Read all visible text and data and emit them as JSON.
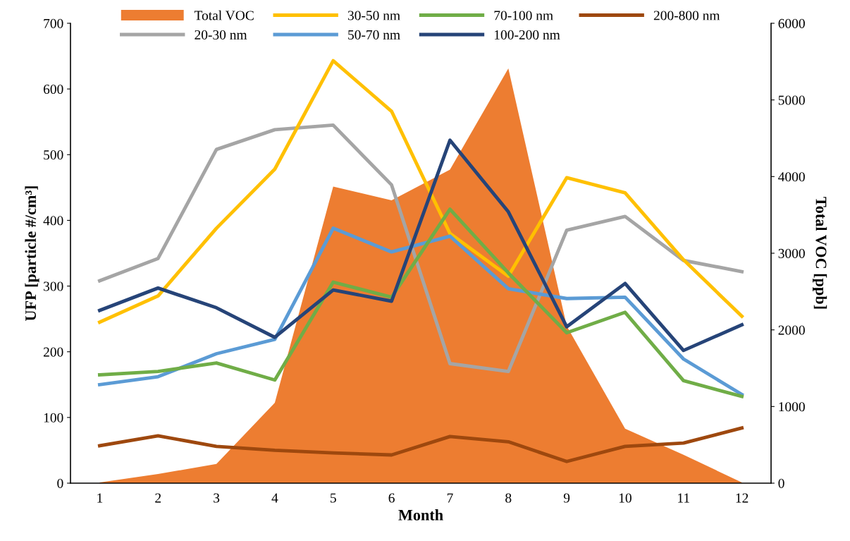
{
  "chart_data": {
    "type": "line",
    "xlabel": "Month",
    "ylabel": "UFP [particle #/cm³]",
    "y2label": "Total VOC [ppb]",
    "categories": [
      "1",
      "2",
      "3",
      "4",
      "5",
      "6",
      "7",
      "8",
      "9",
      "10",
      "11",
      "12"
    ],
    "ylim": [
      0,
      700
    ],
    "yticks": [
      0,
      100,
      200,
      300,
      400,
      500,
      600,
      700
    ],
    "y2lim": [
      0,
      6000
    ],
    "y2ticks": [
      0,
      1000,
      2000,
      3000,
      4000,
      5000,
      6000
    ],
    "grid": false,
    "legend": "top",
    "marker": "none",
    "line_style": "solid",
    "series": [
      {
        "name": "Total VOC",
        "type": "area",
        "axis": "y2",
        "color": "#ed7d31",
        "values": [
          10,
          120,
          250,
          1050,
          3870,
          3690,
          4090,
          5410,
          2050,
          710,
          370,
          10
        ]
      },
      {
        "name": "20-30 nm",
        "color": "#a5a5a5",
        "values": [
          308,
          342,
          508,
          538,
          545,
          454,
          182,
          170,
          385,
          406,
          339,
          322
        ]
      },
      {
        "name": "30-50 nm",
        "color": "#ffc000",
        "values": [
          245,
          285,
          388,
          478,
          643,
          566,
          380,
          315,
          465,
          442,
          340,
          254
        ]
      },
      {
        "name": "50-70 nm",
        "color": "#5b9bd5",
        "values": [
          150,
          162,
          197,
          219,
          388,
          352,
          376,
          296,
          281,
          283,
          189,
          135
        ]
      },
      {
        "name": "70-100 nm",
        "color": "#70ad47",
        "values": [
          165,
          170,
          183,
          157,
          306,
          283,
          417,
          320,
          229,
          260,
          156,
          132
        ]
      },
      {
        "name": "100-200 nm",
        "color": "#264478",
        "values": [
          263,
          297,
          267,
          222,
          294,
          277,
          522,
          413,
          238,
          304,
          202,
          241
        ]
      },
      {
        "name": "200-800 nm",
        "color": "#9e480e",
        "values": [
          57,
          72,
          56,
          50,
          46,
          43,
          71,
          63,
          33,
          56,
          61,
          84
        ]
      }
    ]
  }
}
